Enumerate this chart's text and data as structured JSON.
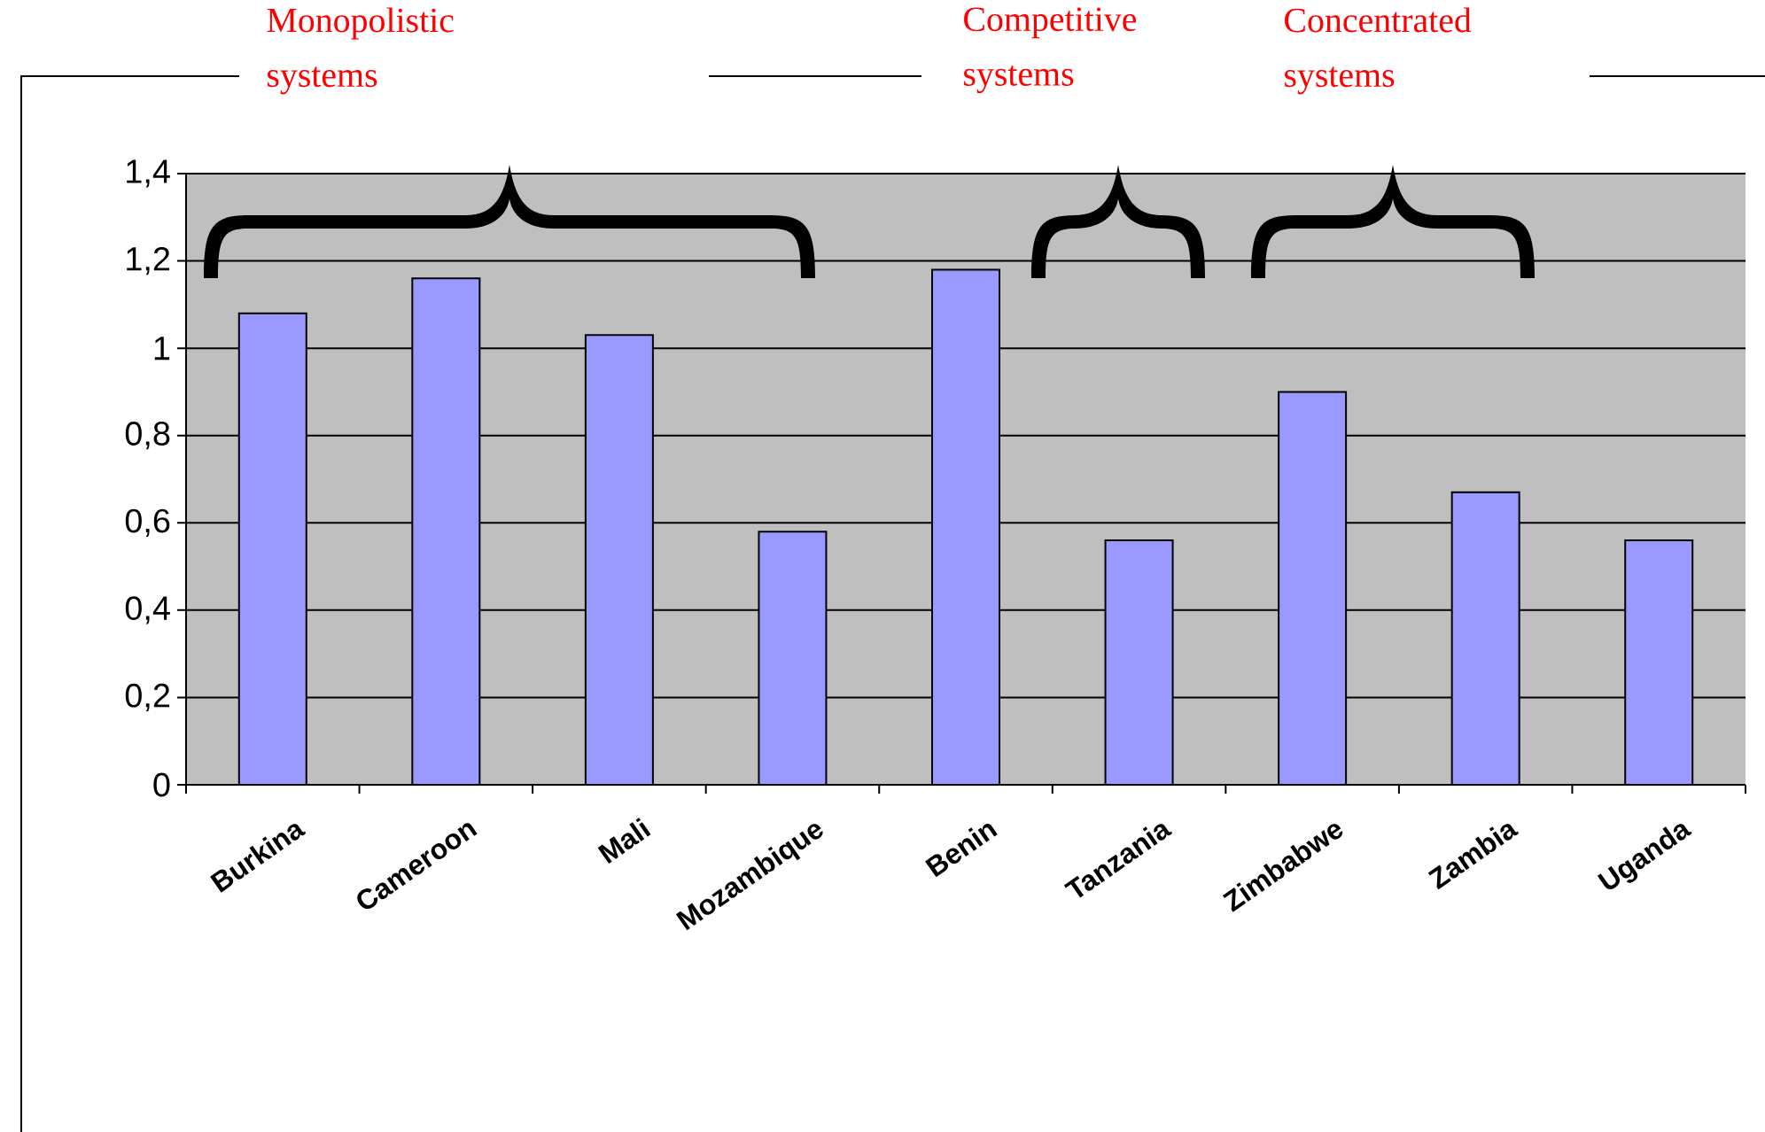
{
  "chart_data": {
    "type": "bar",
    "categories": [
      "Burkina",
      "Cameroon",
      "Mali",
      "Mozambique",
      "Benin",
      "Tanzania",
      "Zimbabwe",
      "Zambia",
      "Uganda"
    ],
    "values": [
      1.08,
      1.16,
      1.03,
      0.58,
      1.18,
      0.56,
      0.9,
      0.67,
      0.56
    ],
    "color": "#9999ff",
    "ylim": [
      0,
      1.4
    ],
    "yticks": [
      0,
      {
        "value": 0.2,
        "label": "0,2"
      },
      {
        "value": 0.4,
        "label": "0,4"
      },
      {
        "value": 0.6,
        "label": "0,6"
      },
      {
        "value": 0.8,
        "label": "0,8"
      },
      1,
      {
        "value": 1.2,
        "label": "1,2"
      },
      {
        "value": 1.4,
        "label": "1,4"
      }
    ],
    "grid": "y",
    "annotations": [
      "Monopolistic systems",
      "Competitive systems",
      "Concentrated systems"
    ]
  }
}
